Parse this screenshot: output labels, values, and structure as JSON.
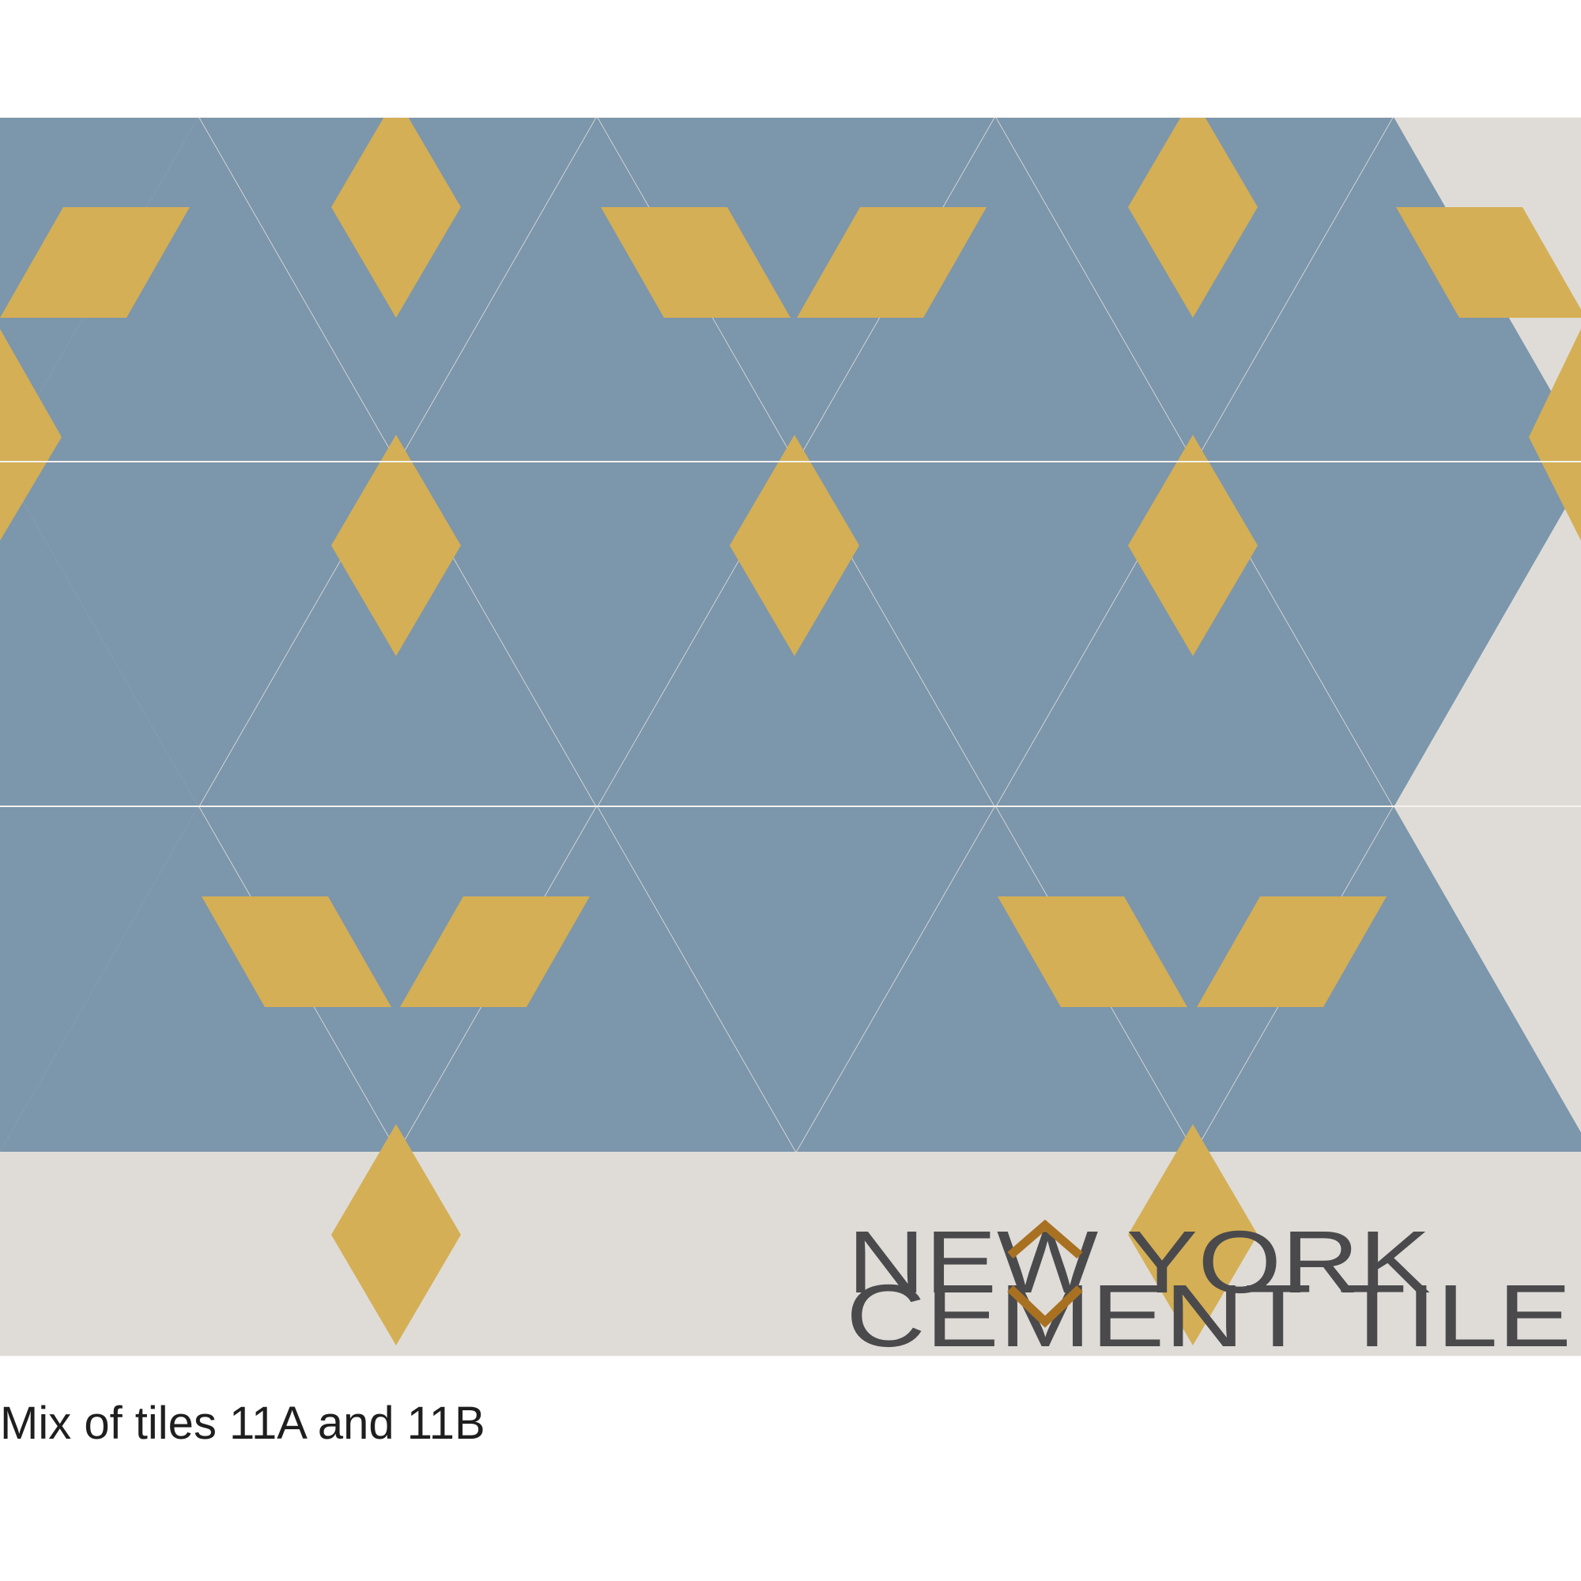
{
  "colors": {
    "blue": "#7c96ab",
    "cream": "#dfdcd8",
    "gold": "#d4af55",
    "seam": "#f4f2ef",
    "logo_text": "#4a4a4c",
    "logo_accent": "#a87122"
  },
  "tile_names": [
    "11A",
    "11B"
  ],
  "logo": {
    "line1": "NEW YORK",
    "line2": "CEMENT TILE"
  },
  "caption": "Mix of tiles 11A and 11B"
}
